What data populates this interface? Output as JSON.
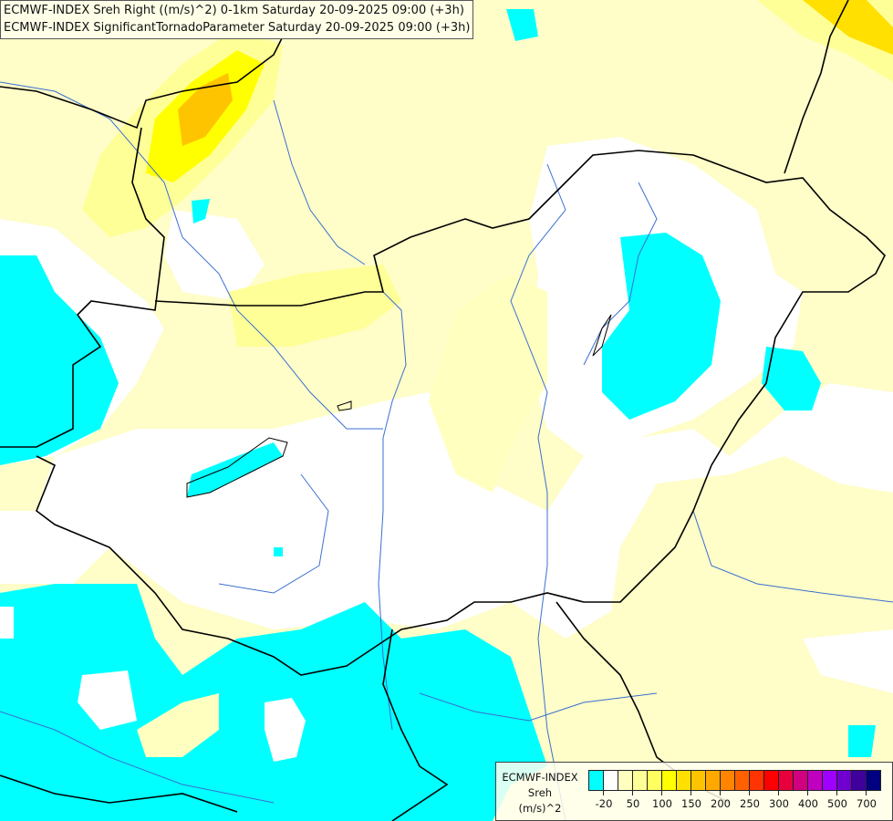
{
  "titles": [
    "ECMWF-INDEX Sreh Right ((m/s)^2) 0-1km Saturday 20-09-2025 09:00 (+3h)",
    "ECMWF-INDEX SignificantTornadoParameter Saturday 20-09-2025 09:00 (+3h)"
  ],
  "legend": {
    "model": "ECMWF-INDEX",
    "variable": "Sreh",
    "unit": "(m/s)^2",
    "colors": [
      "#00ffff",
      "#ffffff",
      "#ffffc0",
      "#ffff98",
      "#ffff60",
      "#ffff00",
      "#ffe000",
      "#ffc400",
      "#ffa800",
      "#ff8400",
      "#ff6000",
      "#ff3400",
      "#ff0000",
      "#e8003c",
      "#d00080",
      "#c000c0",
      "#a000ff",
      "#7000d0",
      "#40009c",
      "#000080"
    ],
    "ticks": [
      "-20",
      "50",
      "100",
      "150",
      "200",
      "250",
      "300",
      "400",
      "500",
      "700"
    ]
  },
  "colors": {
    "background": "#fffdc8",
    "low": "#00ffff",
    "neutral": "#ffffff",
    "moderate": "#ffff60",
    "high": "#ffc000",
    "border": "#000000",
    "river": "#3a6fd0"
  }
}
